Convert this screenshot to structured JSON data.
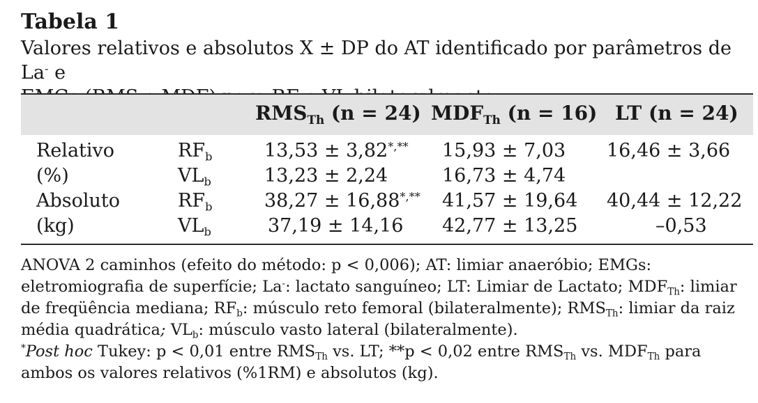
{
  "title": "Tabela 1",
  "caption": {
    "line1_pre": "Valores relativos e absolutos X ± DP do AT identificado por parâmetros de La",
    "line1_sup": "-",
    "line1_post": " e",
    "line2": "EMGs (RMS e MDF) para RF e VL bilateralmente"
  },
  "table": {
    "headers": [
      {
        "main": "RMS",
        "sub": "Th",
        "rest": " (n = 24)"
      },
      {
        "main": "MDF",
        "sub": "Th",
        "rest": " (n = 16)"
      },
      {
        "main": "LT",
        "sub": "",
        "rest": " (n = 24)"
      }
    ],
    "rows": [
      {
        "label": "Relativo",
        "muscle": "RF",
        "muscle_sub": "b",
        "rms": "13,53 ± 3,82",
        "rms_sup": "*,**",
        "mdf": "15,93 ± 7,03",
        "lt": "16,46 ± 3,66"
      },
      {
        "label": "(%)",
        "muscle": "VL",
        "muscle_sub": "b",
        "rms": "13,23 ± 2,24",
        "rms_sup": "",
        "mdf": "16,73 ± 4,74",
        "lt": ""
      },
      {
        "label": "Absoluto",
        "muscle": "RF",
        "muscle_sub": "b",
        "rms": "38,27 ± 16,88",
        "rms_sup": "*,**",
        "mdf": "41,57 ± 19,64",
        "lt": "40,44 ± 12,22"
      },
      {
        "label": "(kg)",
        "muscle": "VL",
        "muscle_sub": "b",
        "rms": "37,19 ± 14,16",
        "rms_sup": "",
        "mdf": "42,77 ± 13,25",
        "lt": "–0,53"
      }
    ]
  },
  "notes": {
    "p1": {
      "t1": "ANOVA 2 caminhos (efeito do método: p < 0,006); AT: limiar anaeróbio; EMGs: eletromiografia de superfície; La",
      "s1": "-",
      "t2": ": lactato sanguíneo; LT: Limiar de Lactato; MDF",
      "b2": "Th",
      "t3": ": limiar de freqüência mediana; RF",
      "b3": "b",
      "t4": ": músculo reto femoral (bilateralmente); RMS",
      "b4": "Th",
      "t5": ": limiar da raiz média quadrática",
      "t5i": ";",
      "t5b": " VL",
      "b5": "b",
      "t6": ": músculo vasto lateral (bilateralmente)."
    },
    "p2": {
      "star": "*",
      "posthoc": "Post hoc",
      "t1": " Tukey: p < 0,01 entre RMS",
      "b1": "Th",
      "t2": " vs. LT; **p < 0,02 entre RMS",
      "b2": "Th",
      "t3": " vs. MDF",
      "b3": "Th",
      "t4": " para ambos os valores relativos (%1RM) e absolutos (kg)."
    }
  }
}
